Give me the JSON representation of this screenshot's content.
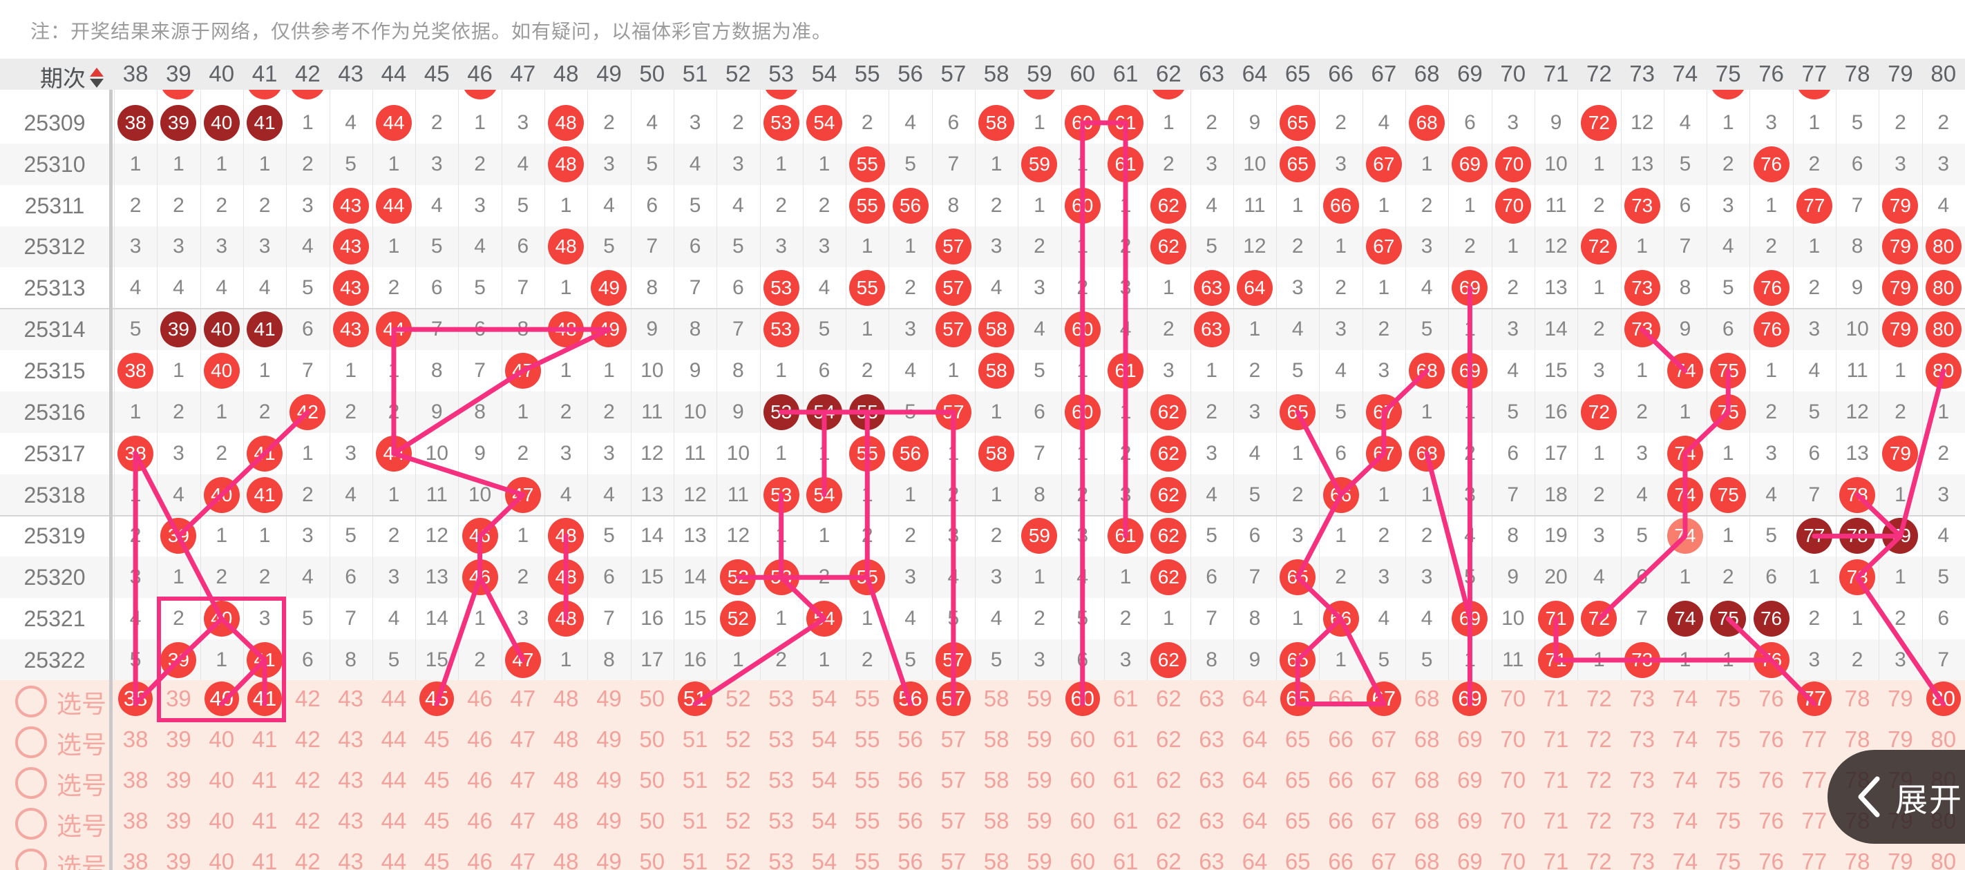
{
  "note": "注：开奖结果来源于网络，仅供参考不作为兑奖依据。如有疑问，以福体彩官方数据为准。",
  "header": {
    "period_label": "期次",
    "sort_icon": "sort-asc-desc-triangles",
    "columns": [
      38,
      39,
      40,
      41,
      42,
      43,
      44,
      45,
      46,
      47,
      48,
      49,
      50,
      51,
      52,
      53,
      54,
      55,
      56,
      57,
      58,
      59,
      60,
      61,
      62,
      63,
      64,
      65,
      66,
      67,
      68,
      69,
      70,
      71,
      72,
      73,
      74,
      75,
      76,
      77,
      78,
      79,
      80
    ]
  },
  "colors": {
    "ball_red": "#f4423c",
    "ball_repeat_dark": "#a02524",
    "ball_light": "#f87e6d",
    "trend_line": "#f5317f",
    "pick_bg": "#fcebe3",
    "pick_text": "#f2a29c",
    "header_bg": "#ececec",
    "miss_text": "#868686"
  },
  "partial_top_row": {
    "circled": [
      39,
      41,
      42,
      46,
      53,
      59,
      62,
      75,
      77
    ]
  },
  "draw_rows": [
    {
      "period": "25309",
      "cells": [
        "d",
        "d",
        "d",
        "d",
        1,
        4,
        "r",
        2,
        1,
        3,
        "r",
        2,
        4,
        3,
        2,
        "r",
        "r",
        2,
        4,
        6,
        "r",
        1,
        "r",
        "r",
        1,
        2,
        9,
        "r",
        2,
        4,
        "r",
        6,
        3,
        9,
        "r",
        12,
        4,
        1,
        3,
        1,
        5,
        2,
        2
      ]
    },
    {
      "period": "25310",
      "cells": [
        1,
        1,
        1,
        1,
        2,
        5,
        1,
        3,
        2,
        4,
        "r",
        3,
        5,
        4,
        3,
        1,
        1,
        "r",
        5,
        7,
        1,
        "r",
        1,
        "r",
        2,
        3,
        10,
        "r",
        3,
        "r",
        1,
        "r",
        "r",
        10,
        1,
        13,
        5,
        2,
        "r",
        2,
        6,
        3,
        3
      ]
    },
    {
      "period": "25311",
      "cells": [
        2,
        2,
        2,
        2,
        3,
        "r",
        "r",
        4,
        3,
        5,
        1,
        4,
        6,
        5,
        4,
        2,
        2,
        "r",
        "r",
        8,
        2,
        1,
        "r",
        1,
        "r",
        4,
        11,
        1,
        "r",
        1,
        2,
        1,
        "r",
        11,
        2,
        "r",
        6,
        3,
        1,
        "r",
        7,
        "r",
        4
      ]
    },
    {
      "period": "25312",
      "cells": [
        3,
        3,
        3,
        3,
        4,
        "r",
        1,
        5,
        4,
        6,
        "r",
        5,
        7,
        6,
        5,
        3,
        3,
        1,
        1,
        "r",
        3,
        2,
        1,
        2,
        "r",
        5,
        12,
        2,
        1,
        "r",
        3,
        2,
        1,
        12,
        "r",
        1,
        7,
        4,
        2,
        1,
        8,
        "r",
        "r"
      ]
    },
    {
      "period": "25313",
      "cells": [
        4,
        4,
        4,
        4,
        5,
        "r",
        2,
        6,
        5,
        7,
        1,
        "r",
        8,
        7,
        6,
        "r",
        4,
        "r",
        2,
        "r",
        4,
        3,
        2,
        3,
        1,
        "r",
        "r",
        3,
        2,
        1,
        4,
        "r",
        2,
        13,
        1,
        "r",
        8,
        5,
        "r",
        2,
        9,
        "r",
        "r"
      ]
    },
    {
      "period": "25314",
      "cells": [
        5,
        "d",
        "d",
        "d",
        6,
        "r",
        "r",
        7,
        6,
        8,
        "r",
        "r",
        9,
        8,
        7,
        "r",
        5,
        1,
        3,
        "r",
        "r",
        4,
        "r",
        4,
        2,
        "r",
        1,
        4,
        3,
        2,
        5,
        1,
        3,
        14,
        2,
        "r",
        9,
        6,
        "r",
        3,
        10,
        "r",
        "r"
      ]
    },
    {
      "period": "25315",
      "cells": [
        "r",
        1,
        "r",
        1,
        7,
        1,
        1,
        8,
        7,
        "r",
        1,
        1,
        10,
        9,
        8,
        1,
        6,
        2,
        4,
        1,
        "r",
        5,
        1,
        "r",
        3,
        1,
        2,
        5,
        4,
        3,
        "r",
        "r",
        4,
        15,
        3,
        1,
        "r",
        "r",
        1,
        4,
        11,
        1,
        "r"
      ]
    },
    {
      "period": "25316",
      "cells": [
        1,
        2,
        1,
        2,
        "r",
        2,
        2,
        9,
        8,
        1,
        2,
        2,
        11,
        10,
        9,
        "d",
        "d",
        "d",
        5,
        "r",
        1,
        6,
        "r",
        1,
        "r",
        2,
        3,
        "r",
        5,
        "r",
        1,
        1,
        5,
        16,
        "r",
        2,
        1,
        "r",
        2,
        5,
        12,
        2,
        1
      ]
    },
    {
      "period": "25317",
      "cells": [
        "r",
        3,
        2,
        "r",
        1,
        3,
        "r",
        10,
        9,
        2,
        3,
        3,
        12,
        11,
        10,
        1,
        1,
        "r",
        "r",
        1,
        "r",
        7,
        1,
        2,
        "r",
        3,
        4,
        1,
        6,
        "r",
        "r",
        2,
        6,
        17,
        1,
        3,
        "r",
        1,
        3,
        6,
        13,
        "r",
        2
      ]
    },
    {
      "period": "25318",
      "cells": [
        1,
        4,
        "r",
        "r",
        2,
        4,
        1,
        11,
        10,
        "r",
        4,
        4,
        13,
        12,
        11,
        "r",
        "r",
        1,
        1,
        2,
        1,
        8,
        2,
        3,
        "r",
        4,
        5,
        2,
        "r",
        1,
        1,
        3,
        7,
        18,
        2,
        4,
        "r",
        "r",
        4,
        7,
        "r",
        1,
        3
      ]
    },
    {
      "period": "25319",
      "cells": [
        2,
        "r",
        1,
        1,
        3,
        5,
        2,
        12,
        "r",
        1,
        "r",
        5,
        14,
        13,
        12,
        1,
        1,
        2,
        2,
        3,
        2,
        "r",
        3,
        "r",
        "r",
        5,
        6,
        3,
        1,
        2,
        2,
        4,
        8,
        19,
        3,
        5,
        "l",
        1,
        5,
        "d",
        "d",
        "d",
        4
      ]
    },
    {
      "period": "25320",
      "cells": [
        3,
        1,
        2,
        2,
        4,
        6,
        3,
        13,
        "r",
        2,
        "r",
        6,
        15,
        14,
        "r",
        "r",
        2,
        "r",
        3,
        4,
        3,
        1,
        4,
        1,
        "r",
        6,
        7,
        "r",
        2,
        3,
        3,
        5,
        9,
        20,
        4,
        6,
        1,
        2,
        6,
        1,
        "r",
        1,
        5
      ]
    },
    {
      "period": "25321",
      "cells": [
        4,
        2,
        "r",
        3,
        5,
        7,
        4,
        14,
        1,
        3,
        "r",
        7,
        16,
        15,
        "r",
        1,
        "r",
        1,
        4,
        5,
        4,
        2,
        5,
        2,
        1,
        7,
        8,
        1,
        "r",
        4,
        4,
        "r",
        10,
        "r",
        "r",
        7,
        "d",
        "d",
        "d",
        2,
        1,
        2,
        6
      ]
    },
    {
      "period": "25322",
      "cells": [
        5,
        "r",
        1,
        "r",
        6,
        8,
        5,
        15,
        2,
        "r",
        1,
        8,
        17,
        16,
        1,
        2,
        1,
        2,
        5,
        "r",
        5,
        3,
        6,
        3,
        "r",
        8,
        9,
        "r",
        1,
        5,
        5,
        1,
        11,
        "r",
        1,
        "r",
        1,
        1,
        "r",
        3,
        2,
        3,
        7
      ]
    }
  ],
  "pick": {
    "label": "选号",
    "rows": [
      {
        "selected": [
          38,
          40,
          41,
          45,
          51,
          56,
          57,
          60,
          65,
          67,
          69,
          77,
          80
        ]
      },
      {
        "selected": []
      },
      {
        "selected": []
      },
      {
        "selected": []
      },
      {
        "selected": []
      }
    ]
  },
  "selection_box": {
    "col_start": 39,
    "col_end": 41,
    "row_start_period": "25321",
    "extends_to_pick_row": true
  },
  "trend_lines": {
    "segments": [
      [
        60,
        0,
        60,
        14
      ],
      [
        61,
        0,
        61,
        10
      ],
      [
        60,
        0,
        61,
        0
      ],
      [
        69,
        4,
        69,
        14
      ],
      [
        44,
        5,
        49,
        5
      ],
      [
        44,
        5,
        44,
        8
      ],
      [
        49,
        5,
        47,
        6
      ],
      [
        47,
        6,
        44,
        8
      ],
      [
        44,
        8,
        47,
        9
      ],
      [
        47,
        9,
        46,
        10
      ],
      [
        42,
        7,
        41,
        8
      ],
      [
        41,
        8,
        40,
        9
      ],
      [
        38,
        8,
        39,
        10
      ],
      [
        38,
        8,
        38,
        14
      ],
      [
        40,
        9,
        39,
        10
      ],
      [
        39,
        10,
        40,
        12
      ],
      [
        40,
        12,
        39,
        13
      ],
      [
        40,
        12,
        41,
        13
      ],
      [
        39,
        13,
        38,
        14
      ],
      [
        41,
        13,
        40,
        14
      ],
      [
        41,
        13,
        41,
        14
      ],
      [
        46,
        10,
        46,
        11
      ],
      [
        46,
        11,
        45,
        14
      ],
      [
        46,
        11,
        47,
        13
      ],
      [
        48,
        10,
        48,
        12
      ],
      [
        54,
        12,
        51,
        14
      ],
      [
        52,
        11,
        55,
        11
      ],
      [
        53,
        11,
        54,
        12
      ],
      [
        53,
        9,
        53,
        11
      ],
      [
        55,
        7,
        55,
        11
      ],
      [
        54,
        7,
        54,
        9
      ],
      [
        53,
        7,
        57,
        7
      ],
      [
        57,
        7,
        57,
        14
      ],
      [
        55,
        11,
        56,
        14
      ],
      [
        65,
        7,
        66,
        9
      ],
      [
        67,
        7,
        67,
        8
      ],
      [
        67,
        8,
        66,
        9
      ],
      [
        66,
        9,
        65,
        11
      ],
      [
        65,
        11,
        66,
        12
      ],
      [
        66,
        12,
        65,
        13
      ],
      [
        65,
        13,
        65,
        14
      ],
      [
        65,
        14,
        67,
        14
      ],
      [
        66,
        12,
        67,
        14
      ],
      [
        68,
        6,
        67,
        7
      ],
      [
        68,
        8,
        69,
        12
      ],
      [
        73,
        5,
        74,
        6
      ],
      [
        75,
        6,
        75,
        7
      ],
      [
        75,
        7,
        74,
        8
      ],
      [
        74,
        8,
        74,
        10
      ],
      [
        74,
        10,
        72,
        12
      ],
      [
        71,
        12,
        71,
        13
      ],
      [
        71,
        13,
        76,
        13
      ],
      [
        76,
        13,
        77,
        14
      ],
      [
        75,
        12,
        76,
        13
      ],
      [
        77,
        10,
        79,
        10
      ],
      [
        79,
        10,
        78,
        11
      ],
      [
        78,
        11,
        80,
        14
      ],
      [
        78,
        9,
        79,
        10
      ],
      [
        80,
        6,
        79,
        10
      ]
    ]
  },
  "expand_button": {
    "label": "展开",
    "icon": "chevron-left"
  }
}
